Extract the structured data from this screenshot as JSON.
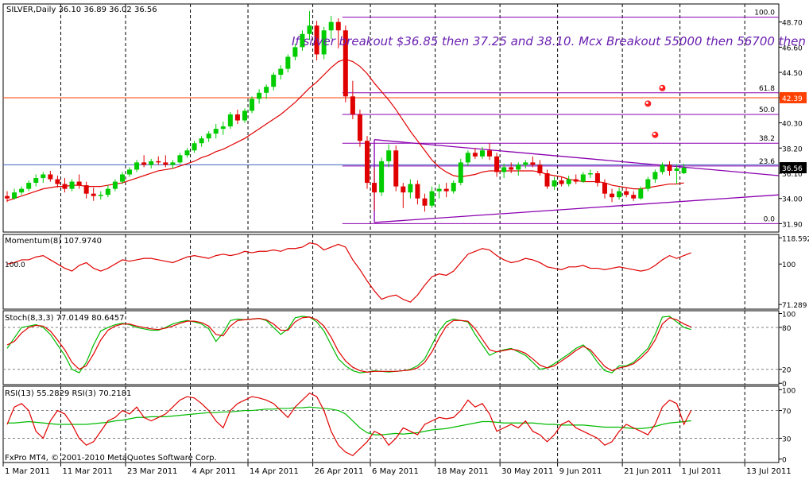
{
  "chart_data": [
    {
      "type": "candlestick",
      "panel": "price",
      "header": {
        "symbol": "SILVER,Daily",
        "ohlc_text": "36.10 36.89 36.02 36.56"
      },
      "annotation": "If silver breakout $36.85 then 37.25 and 38.10. Mcx Breakout 55000 then 56700 then 59000",
      "ylim": [
        31.2,
        50.2
      ],
      "yticks": [
        "48.70",
        "46.60",
        "44.50",
        "42.39",
        "40.30",
        "38.20",
        "36.10",
        "34.00",
        "31.90"
      ],
      "current_price_label": "36.56",
      "level_label": "42.39",
      "fib_levels": [
        {
          "label": "100.0",
          "value": 49.1
        },
        {
          "label": "61.8",
          "value": 42.8
        },
        {
          "label": "50.0",
          "value": 41.0
        },
        {
          "label": "38.2",
          "value": 38.6
        },
        {
          "label": "23.6",
          "value": 36.7
        },
        {
          "label": "0.0",
          "value": 31.9
        }
      ],
      "x_labels": [
        "1 Mar 2011",
        "11 Mar 2011",
        "23 Mar 2011",
        "4 Apr 2011",
        "14 Apr 2011",
        "26 Apr 2011",
        "6 May 2011",
        "18 May 2011",
        "30 May 2011",
        "9 Jun 2011",
        "21 Jun 2011",
        "1 Jul 2011",
        "13 Jul 2011"
      ],
      "ohlc": [
        [
          34.2,
          34.6,
          33.7,
          34.0
        ],
        [
          34.0,
          34.8,
          33.9,
          34.5
        ],
        [
          34.5,
          35.0,
          34.3,
          34.8
        ],
        [
          34.8,
          35.5,
          34.6,
          35.3
        ],
        [
          35.3,
          36.0,
          35.0,
          35.7
        ],
        [
          35.7,
          36.2,
          35.3,
          36.0
        ],
        [
          36.0,
          36.3,
          35.4,
          35.6
        ],
        [
          35.6,
          35.9,
          34.9,
          35.2
        ],
        [
          35.2,
          35.7,
          34.5,
          34.8
        ],
        [
          34.8,
          35.6,
          34.6,
          35.4
        ],
        [
          35.4,
          36.0,
          34.8,
          35.1
        ],
        [
          35.1,
          35.4,
          34.0,
          34.4
        ],
        [
          34.4,
          34.9,
          33.8,
          34.2
        ],
        [
          34.2,
          34.6,
          33.9,
          34.3
        ],
        [
          34.3,
          35.1,
          34.1,
          34.8
        ],
        [
          34.8,
          35.6,
          34.6,
          35.4
        ],
        [
          35.4,
          36.2,
          35.2,
          36.0
        ],
        [
          36.0,
          36.6,
          35.8,
          36.4
        ],
        [
          36.4,
          37.2,
          36.2,
          37.0
        ],
        [
          37.0,
          37.6,
          36.6,
          36.8
        ],
        [
          36.8,
          37.3,
          36.5,
          37.1
        ],
        [
          37.1,
          37.5,
          36.8,
          37.0
        ],
        [
          37.0,
          37.6,
          36.6,
          36.8
        ],
        [
          36.8,
          37.2,
          36.5,
          37.0
        ],
        [
          37.0,
          37.8,
          36.9,
          37.6
        ],
        [
          37.6,
          38.2,
          37.4,
          38.0
        ],
        [
          38.0,
          38.8,
          37.8,
          38.6
        ],
        [
          38.6,
          39.2,
          38.3,
          39.0
        ],
        [
          39.0,
          39.6,
          38.7,
          39.4
        ],
        [
          39.4,
          40.2,
          39.0,
          39.8
        ],
        [
          39.8,
          40.4,
          39.3,
          40.0
        ],
        [
          40.0,
          41.2,
          39.8,
          41.0
        ],
        [
          41.0,
          41.4,
          40.2,
          40.5
        ],
        [
          40.5,
          41.5,
          40.3,
          41.3
        ],
        [
          41.3,
          42.5,
          41.1,
          42.3
        ],
        [
          42.3,
          43.1,
          41.9,
          42.8
        ],
        [
          42.8,
          43.5,
          42.3,
          43.3
        ],
        [
          43.3,
          44.5,
          43.0,
          44.3
        ],
        [
          44.3,
          45.1,
          43.9,
          44.8
        ],
        [
          44.8,
          46.0,
          44.5,
          45.8
        ],
        [
          45.8,
          46.9,
          45.5,
          46.6
        ],
        [
          46.6,
          48.0,
          46.3,
          47.7
        ],
        [
          47.7,
          49.6,
          47.2,
          48.4
        ],
        [
          48.4,
          48.8,
          45.5,
          46.0
        ],
        [
          46.0,
          48.3,
          45.6,
          48.0
        ],
        [
          48.0,
          49.2,
          47.3,
          48.7
        ],
        [
          48.7,
          49.0,
          46.5,
          48.0
        ],
        [
          48.0,
          48.4,
          42.0,
          42.5
        ],
        [
          42.5,
          43.8,
          40.6,
          41.0
        ],
        [
          41.0,
          41.4,
          38.3,
          38.8
        ],
        [
          38.8,
          39.2,
          34.8,
          35.3
        ],
        [
          35.3,
          36.5,
          33.0,
          34.5
        ],
        [
          34.5,
          37.4,
          34.2,
          37.1
        ],
        [
          37.1,
          38.5,
          36.6,
          38.0
        ],
        [
          38.0,
          38.4,
          34.6,
          35.0
        ],
        [
          35.0,
          35.3,
          33.2,
          34.5
        ],
        [
          34.5,
          35.6,
          34.0,
          35.2
        ],
        [
          35.2,
          35.5,
          33.5,
          34.0
        ],
        [
          34.0,
          34.4,
          32.9,
          33.4
        ],
        [
          33.4,
          35.0,
          33.2,
          34.6
        ],
        [
          34.6,
          35.2,
          34.0,
          34.8
        ],
        [
          34.8,
          35.3,
          34.1,
          34.6
        ],
        [
          34.6,
          35.5,
          34.4,
          35.3
        ],
        [
          35.3,
          37.3,
          35.1,
          37.0
        ],
        [
          37.0,
          38.0,
          36.7,
          37.8
        ],
        [
          37.8,
          38.2,
          37.3,
          37.5
        ],
        [
          37.5,
          38.3,
          37.3,
          38.0
        ],
        [
          38.0,
          38.6,
          37.2,
          37.5
        ],
        [
          37.5,
          37.8,
          35.8,
          36.2
        ],
        [
          36.2,
          36.9,
          35.7,
          36.6
        ],
        [
          36.6,
          37.0,
          36.1,
          36.4
        ],
        [
          36.4,
          37.0,
          35.9,
          36.8
        ],
        [
          36.8,
          37.2,
          36.5,
          37.0
        ],
        [
          37.0,
          37.5,
          36.6,
          36.8
        ],
        [
          36.8,
          37.2,
          35.9,
          36.1
        ],
        [
          36.1,
          36.4,
          34.8,
          35.0
        ],
        [
          35.0,
          35.8,
          34.7,
          35.5
        ],
        [
          35.5,
          35.8,
          35.0,
          35.2
        ],
        [
          35.2,
          35.9,
          35.0,
          35.6
        ],
        [
          35.6,
          36.0,
          35.2,
          35.4
        ],
        [
          35.4,
          36.2,
          35.3,
          36.0
        ],
        [
          36.0,
          36.4,
          35.7,
          36.1
        ],
        [
          36.1,
          36.3,
          35.0,
          35.3
        ],
        [
          35.3,
          35.6,
          34.0,
          34.4
        ],
        [
          34.4,
          34.8,
          33.7,
          34.1
        ],
        [
          34.1,
          34.9,
          33.9,
          34.6
        ],
        [
          34.6,
          34.9,
          34.1,
          34.3
        ],
        [
          34.3,
          34.6,
          33.8,
          34.0
        ],
        [
          34.0,
          35.0,
          33.9,
          34.8
        ],
        [
          34.8,
          35.8,
          34.6,
          35.6
        ],
        [
          35.6,
          36.4,
          35.3,
          36.2
        ],
        [
          36.2,
          37.0,
          36.0,
          36.8
        ],
        [
          36.8,
          37.1,
          35.9,
          36.3
        ],
        [
          36.3,
          36.8,
          35.2,
          36.5
        ],
        [
          36.1,
          36.89,
          36.02,
          36.56
        ]
      ],
      "ma": [
        33.8,
        34.0,
        34.2,
        34.4,
        34.6,
        34.8,
        34.9,
        35.0,
        35.0,
        35.1,
        35.1,
        35.0,
        35.0,
        35.0,
        35.1,
        35.2,
        35.3,
        35.5,
        35.7,
        35.9,
        36.1,
        36.3,
        36.4,
        36.5,
        36.7,
        36.9,
        37.1,
        37.4,
        37.6,
        37.9,
        38.1,
        38.4,
        38.7,
        39.0,
        39.4,
        39.8,
        40.2,
        40.6,
        41.0,
        41.5,
        42.0,
        42.6,
        43.2,
        43.7,
        44.3,
        44.9,
        45.4,
        45.6,
        45.4,
        45.0,
        44.4,
        43.6,
        42.9,
        42.2,
        41.4,
        40.5,
        39.6,
        38.8,
        38.0,
        37.2,
        36.6,
        36.2,
        35.9,
        35.8,
        35.9,
        36.0,
        36.2,
        36.3,
        36.3,
        36.3,
        36.3,
        36.3,
        36.3,
        36.3,
        36.2,
        36.0,
        35.9,
        35.8,
        35.6,
        35.5,
        35.4,
        35.4,
        35.4,
        35.3,
        35.1,
        35.0,
        34.9,
        34.8,
        34.8,
        34.9,
        35.0,
        35.1,
        35.2,
        35.2,
        35.3
      ]
    },
    {
      "type": "line",
      "panel": "momentum",
      "header": "Momentum(8) 107.9740",
      "ylim": [
        68,
        121
      ],
      "yticks": [
        "118.5923",
        "100",
        "71.289"
      ],
      "left_label": "100.0",
      "values": [
        100,
        101,
        103,
        103,
        105,
        106,
        103,
        100,
        97,
        95,
        99,
        101,
        97,
        95,
        97,
        100,
        103,
        102,
        103,
        104,
        104,
        103,
        102,
        101,
        103,
        105,
        106,
        105,
        104,
        106,
        107,
        106,
        107,
        109,
        108,
        109,
        109,
        110,
        109,
        111,
        111,
        112,
        115,
        114,
        110,
        112,
        114,
        112,
        103,
        96,
        88,
        81,
        75,
        77,
        78,
        75,
        73,
        78,
        85,
        91,
        93,
        92,
        95,
        101,
        107,
        109,
        111,
        110,
        106,
        103,
        101,
        102,
        104,
        103,
        101,
        98,
        97,
        96,
        98,
        98,
        99,
        97,
        97,
        96,
        97,
        98,
        97,
        96,
        95,
        96,
        99,
        103,
        106,
        104,
        106,
        107.974
      ]
    },
    {
      "type": "line",
      "panel": "stochastic",
      "header": "Stoch(8,3,3) 77.0149 80.6457",
      "ylim": [
        -2,
        104
      ],
      "yticks": [
        "100",
        "80",
        "20",
        "0"
      ],
      "series": [
        {
          "values": [
            50,
            65,
            80,
            82,
            84,
            80,
            70,
            55,
            40,
            20,
            15,
            30,
            55,
            75,
            80,
            84,
            86,
            84,
            80,
            78,
            76,
            76,
            80,
            85,
            88,
            90,
            88,
            85,
            78,
            60,
            72,
            90,
            92,
            91,
            92,
            93,
            90,
            80,
            70,
            78,
            94,
            96,
            95,
            88,
            75,
            55,
            35,
            25,
            18,
            15,
            16,
            18,
            17,
            16,
            17,
            18,
            20,
            25,
            35,
            55,
            75,
            88,
            92,
            90,
            88,
            70,
            55,
            40,
            45,
            48,
            50,
            45,
            40,
            30,
            20,
            22,
            28,
            35,
            42,
            50,
            55,
            45,
            30,
            18,
            15,
            25,
            25,
            30,
            40,
            50,
            70,
            95,
            96,
            88,
            80,
            77.0149
          ]
        },
        {
          "values": [
            55,
            60,
            72,
            80,
            83,
            82,
            75,
            62,
            48,
            30,
            20,
            25,
            42,
            62,
            76,
            82,
            85,
            85,
            82,
            80,
            78,
            77,
            79,
            82,
            86,
            89,
            89,
            87,
            82,
            70,
            68,
            82,
            90,
            91,
            92,
            93,
            91,
            85,
            76,
            76,
            88,
            94,
            95,
            91,
            82,
            66,
            46,
            32,
            23,
            18,
            16,
            17,
            17,
            17,
            17,
            18,
            19,
            22,
            30,
            45,
            65,
            82,
            90,
            90,
            89,
            78,
            63,
            48,
            45,
            47,
            49,
            47,
            43,
            35,
            26,
            22,
            25,
            32,
            39,
            47,
            53,
            48,
            36,
            24,
            18,
            22,
            24,
            28,
            36,
            46,
            62,
            85,
            94,
            91,
            85,
            80.6457
          ]
        }
      ]
    },
    {
      "type": "line",
      "panel": "rsi",
      "header": "RSI(13) 55.2829  RSI(3) 70.2181",
      "ylim": [
        -5,
        105
      ],
      "yticks": [
        "100",
        "70",
        "30",
        "0"
      ],
      "series": [
        {
          "values": [
            52,
            52,
            53,
            54,
            53,
            52,
            51,
            50,
            50,
            50,
            50,
            50,
            51,
            52,
            53,
            55,
            56,
            58,
            60,
            60,
            61,
            61,
            61,
            62,
            63,
            64,
            65,
            66,
            67,
            67,
            68,
            68,
            69,
            70,
            70,
            71,
            72,
            72,
            73,
            73,
            74,
            74,
            75,
            74,
            73,
            72,
            70,
            65,
            55,
            45,
            38,
            35,
            35,
            36,
            37,
            36,
            37,
            38,
            40,
            42,
            43,
            44,
            46,
            48,
            50,
            52,
            54,
            54,
            53,
            52,
            52,
            52,
            52,
            52,
            51,
            50,
            50,
            49,
            49,
            49,
            49,
            48,
            47,
            46,
            46,
            46,
            45,
            44,
            44,
            45,
            47,
            50,
            52,
            53,
            54,
            55.2829
          ]
        },
        {
          "values": [
            50,
            75,
            80,
            70,
            40,
            30,
            55,
            70,
            65,
            50,
            30,
            20,
            25,
            40,
            55,
            60,
            70,
            65,
            75,
            60,
            55,
            60,
            65,
            75,
            85,
            90,
            88,
            80,
            70,
            55,
            45,
            70,
            80,
            85,
            90,
            88,
            85,
            80,
            70,
            60,
            75,
            85,
            95,
            90,
            70,
            40,
            20,
            10,
            5,
            15,
            25,
            40,
            35,
            20,
            30,
            45,
            40,
            35,
            50,
            55,
            60,
            58,
            60,
            70,
            85,
            75,
            80,
            65,
            40,
            45,
            50,
            45,
            55,
            40,
            35,
            25,
            35,
            50,
            55,
            45,
            40,
            35,
            30,
            20,
            25,
            40,
            50,
            45,
            40,
            35,
            50,
            75,
            85,
            80,
            50,
            70.2181
          ]
        }
      ]
    }
  ],
  "footer": "FxPro MT4, © 2001-2010 MetaQuotes Software Corp."
}
